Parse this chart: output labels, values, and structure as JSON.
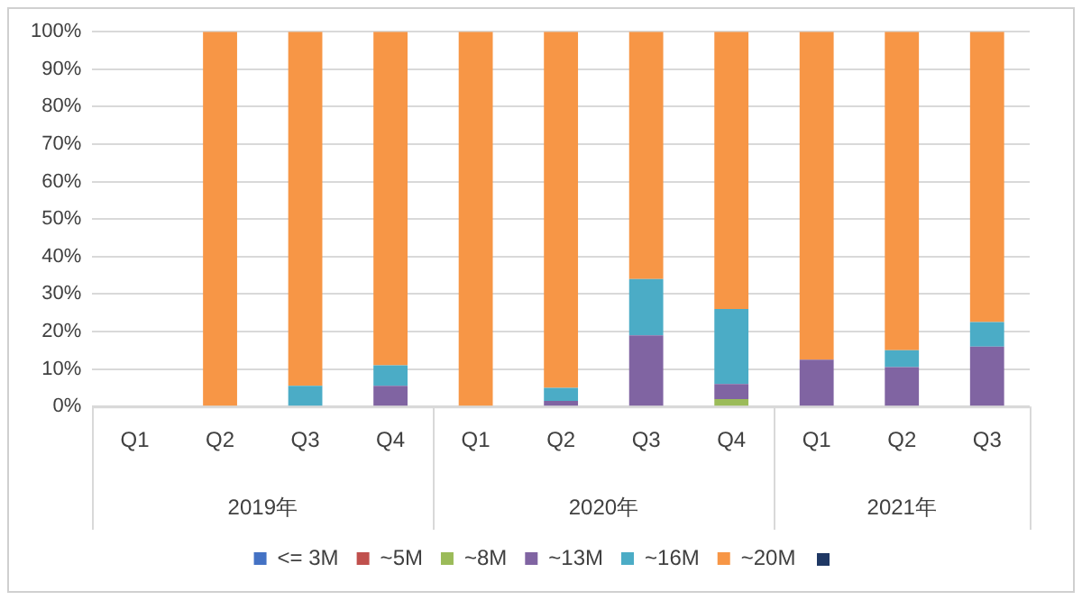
{
  "chart_data": {
    "type": "bar",
    "stacked": true,
    "categories": [
      "Q1",
      "Q2",
      "Q3",
      "Q4",
      "Q1",
      "Q2",
      "Q3",
      "Q4",
      "Q1",
      "Q2",
      "Q3"
    ],
    "series": [
      {
        "name": "<= 3M",
        "color": "#4472c4",
        "values": [
          null,
          0,
          0,
          0,
          0,
          0,
          0,
          0,
          0,
          0,
          0
        ]
      },
      {
        "name": "~5M",
        "color": "#c0504d",
        "values": [
          null,
          0,
          0,
          0,
          0,
          0,
          0,
          0,
          0,
          0,
          0
        ]
      },
      {
        "name": "~8M",
        "color": "#9bbb59",
        "values": [
          null,
          0,
          0,
          0,
          0,
          0,
          0,
          2,
          0,
          0,
          0
        ]
      },
      {
        "name": "~13M",
        "color": "#8064a2",
        "values": [
          null,
          0,
          0,
          5.5,
          0,
          1.5,
          19,
          4,
          12.5,
          10.5,
          16
        ]
      },
      {
        "name": "~16M",
        "color": "#4bacc6",
        "values": [
          null,
          0,
          5.5,
          5.5,
          0,
          3.5,
          15,
          20,
          0,
          4.5,
          6.5
        ]
      },
      {
        "name": "~20M",
        "color": "#f79646",
        "values": [
          null,
          100,
          94.5,
          89,
          100,
          95,
          66,
          74,
          87.5,
          85,
          77.5
        ]
      }
    ],
    "ylim": [
      0,
      100
    ],
    "yticks": [
      {
        "value": 0,
        "label": "0%"
      },
      {
        "value": 10,
        "label": "10%"
      },
      {
        "value": 20,
        "label": "20%"
      },
      {
        "value": 30,
        "label": "30%"
      },
      {
        "value": 40,
        "label": "40%"
      },
      {
        "value": 50,
        "label": "50%"
      },
      {
        "value": 60,
        "label": "60%"
      },
      {
        "value": 70,
        "label": "70%"
      },
      {
        "value": 80,
        "label": "80%"
      },
      {
        "value": 90,
        "label": "90%"
      },
      {
        "value": 100,
        "label": "100%"
      }
    ],
    "annotations": [
      "2019年",
      "2020年",
      "2021年"
    ],
    "grid": "y",
    "legend": "bottom"
  }
}
